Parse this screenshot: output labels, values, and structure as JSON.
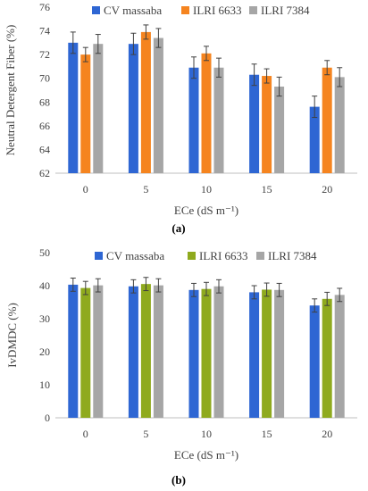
{
  "colors": {
    "CV massaba": "#2E66D3",
    "ILRI 6633": "#F5841F",
    "ILRI 7384": "#A6A6A6",
    "ILRI 6633 (b)": "#8FAA1E",
    "axis": "#BFBFBF",
    "error": "#404040"
  },
  "chart_data": [
    {
      "type": "bar",
      "panel_label": "(a)",
      "categories": [
        "0",
        "5",
        "10",
        "15",
        "20"
      ],
      "xlabel": "ECe (dS m⁻¹)",
      "ylabel": "Neutral Detergent Fiber (%)",
      "ylim": [
        62,
        76
      ],
      "yticks": [
        "62",
        "64",
        "66",
        "68",
        "70",
        "72",
        "74",
        "76"
      ],
      "legend_position": "top",
      "grid": false,
      "series": [
        {
          "name": "CV massaba",
          "values": [
            73.0,
            72.9,
            70.9,
            70.3,
            67.6
          ],
          "errors": [
            0.9,
            0.9,
            0.9,
            0.9,
            0.9
          ]
        },
        {
          "name": "ILRI 6633",
          "values": [
            72.0,
            73.9,
            72.1,
            70.2,
            70.9
          ],
          "errors": [
            0.6,
            0.6,
            0.6,
            0.6,
            0.6
          ]
        },
        {
          "name": "ILRI 7384",
          "values": [
            72.9,
            73.4,
            70.9,
            69.3,
            70.1
          ],
          "errors": [
            0.8,
            0.8,
            0.8,
            0.8,
            0.8
          ]
        }
      ]
    },
    {
      "type": "bar",
      "panel_label": "(b)",
      "categories": [
        "0",
        "5",
        "10",
        "15",
        "20"
      ],
      "xlabel": "ECe (dS m⁻¹)",
      "ylabel": "IvDMDC (%)",
      "ylim": [
        0,
        50
      ],
      "yticks": [
        "0",
        "10",
        "20",
        "30",
        "40",
        "50"
      ],
      "legend_position": "top",
      "grid": false,
      "series": [
        {
          "name": "CV massaba",
          "values": [
            40.3,
            39.8,
            38.7,
            38.0,
            34.0
          ],
          "errors": [
            2.0,
            2.0,
            2.0,
            2.0,
            2.0
          ]
        },
        {
          "name": "ILRI 6633",
          "values": [
            39.3,
            40.5,
            39.0,
            38.8,
            36.0
          ],
          "errors": [
            2.0,
            2.0,
            2.0,
            2.0,
            2.0
          ]
        },
        {
          "name": "ILRI 7384",
          "values": [
            40.1,
            40.1,
            39.8,
            38.7,
            37.2
          ],
          "errors": [
            2.0,
            2.0,
            2.0,
            2.0,
            2.0
          ]
        }
      ]
    }
  ]
}
